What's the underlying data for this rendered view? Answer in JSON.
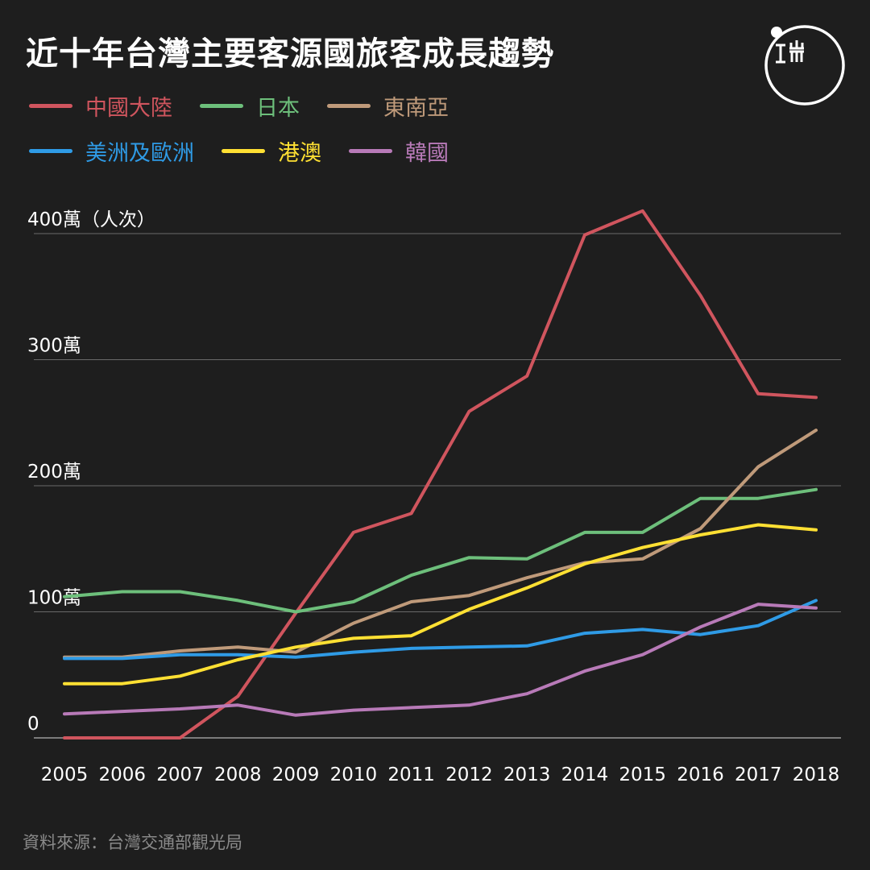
{
  "title": "近十年台灣主要客源國旅客成長趨勢",
  "source": "資料來源：台灣交通部觀光局",
  "logo_icon": "initium-logo-icon",
  "chart_data": {
    "type": "line",
    "title": "近十年台灣主要客源國旅客成長趨勢",
    "x": [
      "2005",
      "2006",
      "2007",
      "2008",
      "2009",
      "2010",
      "2011",
      "2012",
      "2013",
      "2014",
      "2015",
      "2016",
      "2017",
      "2018"
    ],
    "y_ticks": [
      {
        "value": 0,
        "label": "0"
      },
      {
        "value": 100,
        "label": "100萬"
      },
      {
        "value": 200,
        "label": "200萬"
      },
      {
        "value": 300,
        "label": "300萬"
      },
      {
        "value": 400,
        "label": "400萬（人次）"
      }
    ],
    "ylim": [
      0,
      400
    ],
    "grid": true,
    "legend_position": "top-left",
    "series": [
      {
        "name": "中國大陸",
        "color": "#d0555e",
        "values": [
          0,
          0,
          0,
          33,
          99,
          163,
          178,
          259,
          287,
          399,
          418,
          351,
          273,
          270
        ]
      },
      {
        "name": "日本",
        "color": "#6dbf7b",
        "values": [
          112,
          116,
          116,
          109,
          100,
          108,
          129,
          143,
          142,
          163,
          163,
          190,
          190,
          197
        ]
      },
      {
        "name": "東南亞",
        "color": "#bf9a7a",
        "values": [
          64,
          64,
          69,
          72,
          68,
          91,
          108,
          113,
          127,
          139,
          142,
          166,
          215,
          244
        ]
      },
      {
        "name": "美洲及歐洲",
        "color": "#2f9be6",
        "values": [
          63,
          63,
          66,
          66,
          64,
          68,
          71,
          72,
          73,
          83,
          86,
          82,
          89,
          109
        ]
      },
      {
        "name": "港澳",
        "color": "#ffe033",
        "values": [
          43,
          43,
          49,
          62,
          72,
          79,
          81,
          102,
          119,
          138,
          151,
          161,
          169,
          165
        ]
      },
      {
        "name": "韓國",
        "color": "#b87ab8",
        "values": [
          19,
          21,
          23,
          26,
          18,
          22,
          24,
          26,
          35,
          53,
          66,
          88,
          106,
          103
        ]
      }
    ]
  }
}
